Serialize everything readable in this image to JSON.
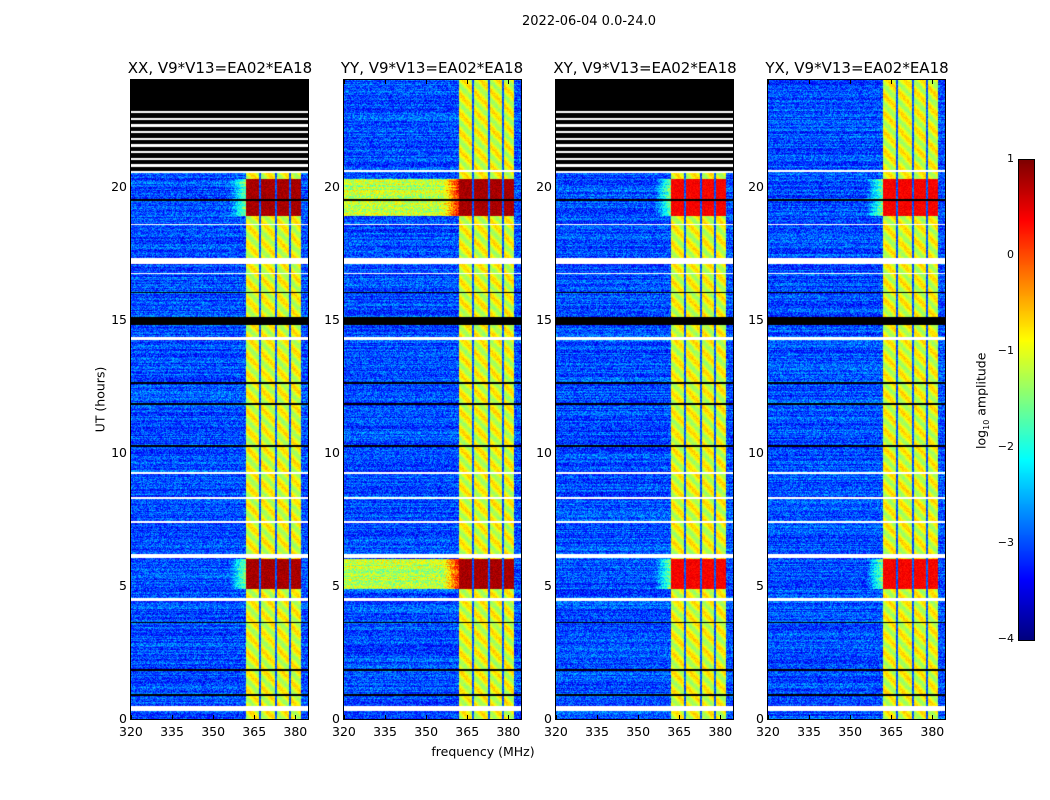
{
  "suptitle": "2022-06-04 0.0-24.0",
  "colors": {
    "flagged": "#ffffff",
    "missing": "#000000"
  },
  "chart_data": {
    "type": "heatmap",
    "colormap": "jet",
    "title": "2022-06-04 0.0-24.0",
    "xlabel": "frequency (MHz)",
    "ylabel": "UT (hours)",
    "xlim": [
      320,
      384.6
    ],
    "ylim": [
      0,
      24
    ],
    "xticks": [
      "320",
      "335",
      "350",
      "365",
      "380"
    ],
    "yticks": [
      "0",
      "5",
      "10",
      "15",
      "20"
    ],
    "panels": [
      {
        "title": "XX, V9*V13=EA02*EA18",
        "missing_above_hour": 20.5
      },
      {
        "title": "YY, V9*V13=EA02*EA18",
        "missing_above_hour": null
      },
      {
        "title": "XY, V9*V13=EA02*EA18",
        "missing_above_hour": 20.5
      },
      {
        "title": "YX, V9*V13=EA02*EA18",
        "missing_above_hour": null
      }
    ],
    "background_log10_amplitude": -3,
    "rfi_band_mhz": [
      362,
      382
    ],
    "rfi_band_log10_amplitude": -1,
    "rfi_channel_gaps_mhz": [
      367,
      373,
      378
    ],
    "strong_rfi_hours": [
      [
        18.9,
        20.3
      ],
      [
        4.9,
        6.0
      ]
    ],
    "strong_rfi_log10_amplitude": 0.8,
    "flagged_hours": [
      [
        0.3,
        0.5
      ],
      [
        4.45,
        4.55
      ],
      [
        6.05,
        6.2
      ],
      [
        7.35,
        7.42
      ],
      [
        8.25,
        8.32
      ],
      [
        9.2,
        9.26
      ],
      [
        14.25,
        14.35
      ],
      [
        16.7,
        16.76
      ],
      [
        17.1,
        17.3
      ],
      [
        18.55,
        18.6
      ],
      [
        20.55,
        20.62
      ]
    ],
    "missing_hours": [
      [
        0.85,
        0.95
      ],
      [
        1.8,
        1.86
      ],
      [
        3.6,
        3.66
      ],
      [
        10.2,
        10.28
      ],
      [
        11.8,
        11.86
      ],
      [
        12.6,
        12.66
      ],
      [
        14.8,
        15.1
      ],
      [
        19.45,
        19.52
      ],
      [
        16.0,
        16.05
      ]
    ],
    "colorbar": {
      "label_prefix": "log",
      "label_sub": "10",
      "label_suffix": " amplitude",
      "range": [
        -4,
        1
      ],
      "ticks": [
        "1",
        "0",
        "−1",
        "−2",
        "−3",
        "−4"
      ]
    }
  }
}
